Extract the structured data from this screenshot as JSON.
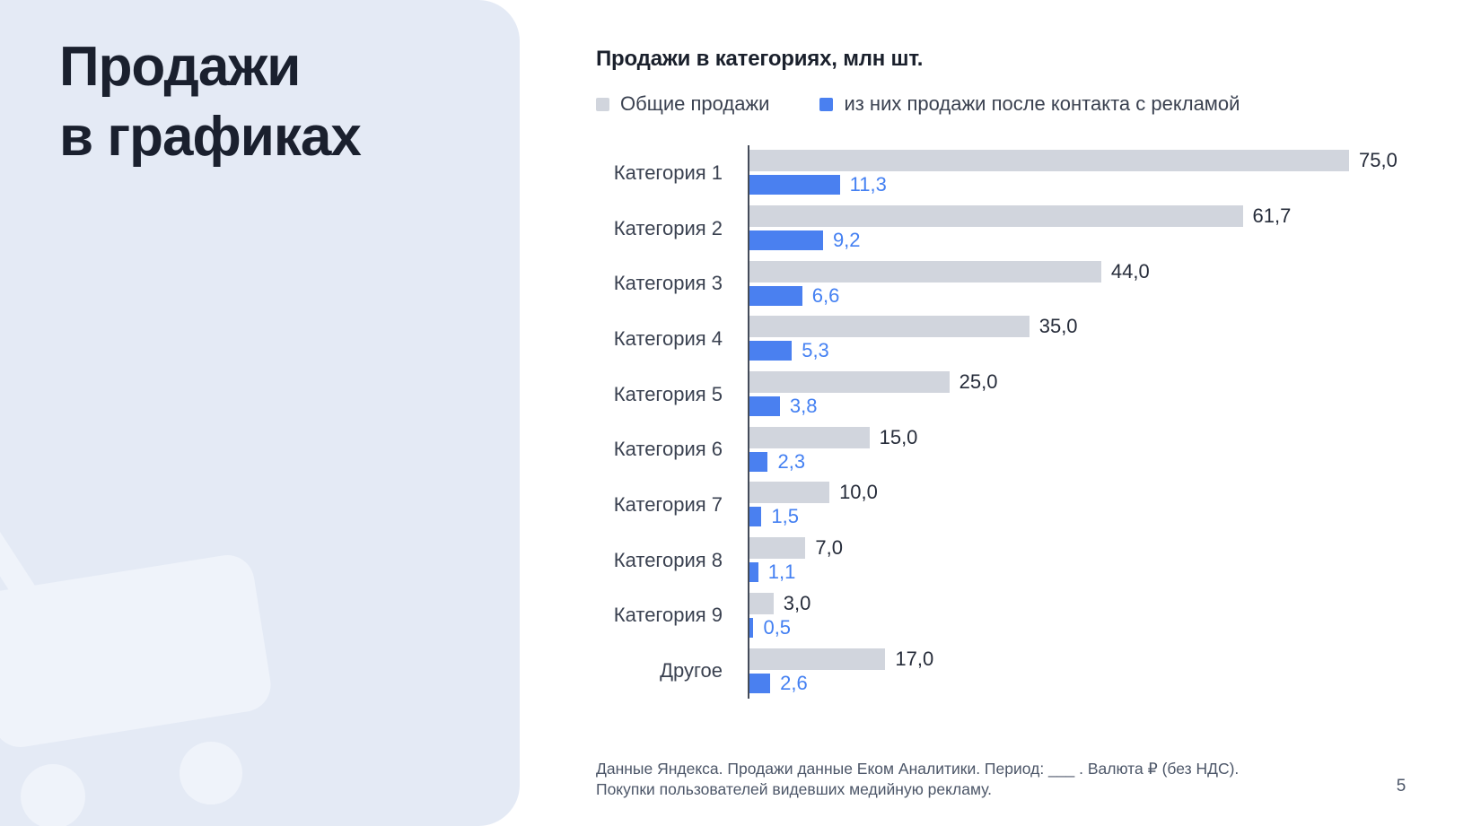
{
  "page": {
    "number": "5"
  },
  "panel": {
    "title_line1": "Продажи",
    "title_line2": "в графиках"
  },
  "footer": {
    "note": "Данные Яндекса. Продажи данные Еком Аналитики. Период: ___ . Валюта ₽ (без НДС). Покупки пользователей видевших медийную рекламу."
  },
  "colors": {
    "panel_background": "#E4EAF5",
    "cart_watermark": "#EFF3FA",
    "total_sales_bar": "#D1D5DD",
    "ad_sales_bar": "#4A80F0",
    "ad_value_text": "#4480F2",
    "total_value_text": "#262C3A",
    "axis_line": "#444B59"
  },
  "chart_data": {
    "type": "bar",
    "orientation": "horizontal",
    "title": "Продажи в категориях, млн шт.",
    "legend_position": "top",
    "grid": false,
    "xlim": [
      0,
      75
    ],
    "categories": [
      "Категория 1",
      "Категория 2",
      "Категория 3",
      "Категория 4",
      "Категория 5",
      "Категория 6",
      "Категория 7",
      "Категория 8",
      "Категория 9",
      "Другое"
    ],
    "series": [
      {
        "name": "Общие продажи",
        "color": "#D1D5DD",
        "values": [
          75.0,
          61.7,
          44.0,
          35.0,
          25.0,
          15.0,
          10.0,
          7.0,
          3.0,
          17.0
        ],
        "value_labels": [
          "75,0",
          "61,7",
          "44,0",
          "35,0",
          "25,0",
          "15,0",
          "10,0",
          "7,0",
          "3,0",
          "17,0"
        ]
      },
      {
        "name": "из них продажи после контакта с рекламой",
        "color": "#4A80F0",
        "values": [
          11.3,
          9.2,
          6.6,
          5.3,
          3.8,
          2.3,
          1.5,
          1.1,
          0.5,
          2.6
        ],
        "value_labels": [
          "11,3",
          "9,2",
          "6,6",
          "5,3",
          "3,8",
          "2,3",
          "1,5",
          "1,1",
          "0,5",
          "2,6"
        ]
      }
    ]
  }
}
